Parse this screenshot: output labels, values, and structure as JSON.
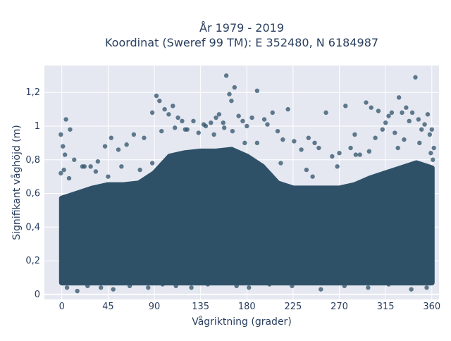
{
  "chart_data": {
    "type": "scatter",
    "title": [
      "År 1979 - 2019",
      "Koordinat (Sweref 99 TM): E 352480, N 6184987"
    ],
    "xlabel": "Vågriktning (grader)",
    "ylabel": "Signifikant våghöjd (m)",
    "xlim": [
      -17,
      367
    ],
    "ylim": [
      -0.03,
      1.36
    ],
    "xticks": [
      0,
      45,
      90,
      135,
      180,
      225,
      270,
      315,
      360
    ],
    "xticklabels": [
      "0",
      "45",
      "90",
      "135",
      "180",
      "225",
      "270",
      "315",
      "360"
    ],
    "yticks": [
      0,
      0.2,
      0.4,
      0.6,
      0.8,
      1.0,
      1.2
    ],
    "yticklabels": [
      "0",
      "0,2",
      "0,4",
      "0,6",
      "0,8",
      "1",
      "1,2"
    ],
    "grid": true,
    "marker_color": "#2f5168",
    "marker_opacity": 0.75,
    "dense_band": {
      "x_range": [
        0,
        360
      ],
      "y_min": 0.07,
      "envelope": {
        "x": [
          0,
          15,
          30,
          45,
          60,
          75,
          90,
          105,
          120,
          135,
          150,
          165,
          180,
          195,
          210,
          225,
          240,
          255,
          270,
          285,
          300,
          315,
          330,
          345,
          360
        ],
        "y_top": [
          0.57,
          0.6,
          0.63,
          0.65,
          0.65,
          0.66,
          0.72,
          0.82,
          0.84,
          0.85,
          0.85,
          0.86,
          0.82,
          0.76,
          0.66,
          0.63,
          0.63,
          0.63,
          0.63,
          0.65,
          0.69,
          0.72,
          0.75,
          0.78,
          0.75
        ]
      }
    },
    "points": {
      "x": [
        -1,
        1,
        4,
        8,
        3,
        12,
        20,
        28,
        35,
        42,
        48,
        55,
        63,
        70,
        80,
        88,
        92,
        95,
        100,
        104,
        108,
        113,
        117,
        122,
        128,
        133,
        140,
        145,
        150,
        153,
        157,
        160,
        163,
        165,
        168,
        172,
        176,
        180,
        185,
        190,
        197,
        200,
        205,
        210,
        215,
        220,
        226,
        233,
        240,
        246,
        250,
        257,
        263,
        270,
        276,
        281,
        285,
        290,
        296,
        301,
        305,
        308,
        312,
        315,
        318,
        321,
        324,
        328,
        331,
        335,
        338,
        341,
        344,
        347,
        350,
        353,
        356,
        358,
        360,
        362,
        5,
        15,
        25,
        38,
        50,
        66,
        84,
        98,
        111,
        126,
        142,
        170,
        182,
        202,
        224,
        252,
        275,
        298,
        318,
        340,
        355,
        -1,
        2,
        22,
        45,
        76,
        97,
        120,
        148,
        166,
        190,
        238,
        286,
        333,
        359,
        7,
        33,
        58,
        88,
        110,
        138,
        158,
        178,
        213,
        244,
        268,
        299,
        327,
        348,
        361
      ],
      "y": [
        0.95,
        0.88,
        1.04,
        0.98,
        0.83,
        0.8,
        0.76,
        0.76,
        0.79,
        0.88,
        0.93,
        0.86,
        0.89,
        0.95,
        0.93,
        1.08,
        1.18,
        1.15,
        1.1,
        1.07,
        1.12,
        1.05,
        1.03,
        0.98,
        1.03,
        0.96,
        1.0,
        1.02,
        1.05,
        1.07,
        1.02,
        1.3,
        1.19,
        1.15,
        1.23,
        1.06,
        1.03,
        1.0,
        1.05,
        1.21,
        1.04,
        1.01,
        1.08,
        0.97,
        0.92,
        1.1,
        0.91,
        0.86,
        0.93,
        0.9,
        0.87,
        1.08,
        0.82,
        0.84,
        1.12,
        0.87,
        0.95,
        0.83,
        1.14,
        1.11,
        0.93,
        1.09,
        0.98,
        1.02,
        1.06,
        1.08,
        0.96,
        1.17,
        1.08,
        1.11,
        1.03,
        1.08,
        1.29,
        1.04,
        0.98,
        1.01,
        1.07,
        0.95,
        0.98,
        0.87,
        0.04,
        0.02,
        0.05,
        0.04,
        0.03,
        0.05,
        0.04,
        0.06,
        0.05,
        0.04,
        0.06,
        0.05,
        0.04,
        0.06,
        0.05,
        0.03,
        0.05,
        0.04,
        0.06,
        0.03,
        0.04,
        0.72,
        0.74,
        0.76,
        0.7,
        0.74,
        0.97,
        0.98,
        0.95,
        0.97,
        0.9,
        0.74,
        0.83,
        0.92,
        0.84,
        0.69,
        0.73,
        0.76,
        0.78,
        0.99,
        1.01,
        0.99,
        0.9,
        0.78,
        0.7,
        0.76,
        0.85,
        0.87,
        0.9,
        0.8
      ]
    }
  }
}
